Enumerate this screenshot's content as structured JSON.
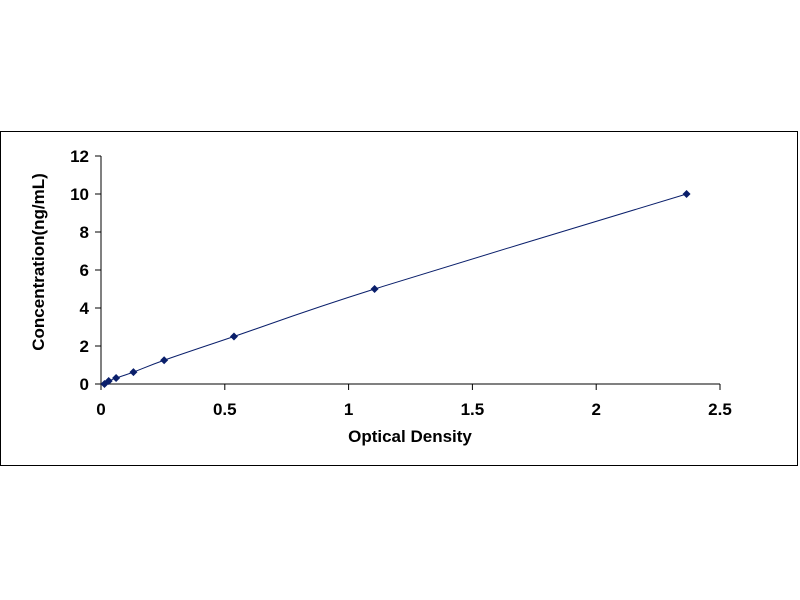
{
  "chart_data": {
    "type": "scatter",
    "title": "",
    "xlabel": "Optical Density",
    "ylabel": "Concentration(ng/mL)",
    "xlim": [
      0,
      2.5
    ],
    "ylim": [
      0,
      12
    ],
    "x_ticks": [
      0,
      0.5,
      1,
      1.5,
      2,
      2.5
    ],
    "x_tick_labels": [
      "0",
      "0.5",
      "1",
      "1.5",
      "2",
      "2.5"
    ],
    "y_ticks": [
      0,
      2,
      4,
      6,
      8,
      10,
      12
    ],
    "y_tick_labels": [
      "0",
      "2",
      "4",
      "6",
      "8",
      "10",
      "12"
    ],
    "grid": false,
    "legend": "none",
    "series": [
      {
        "marker": "diamond",
        "line": "smooth",
        "x": [
          0.014,
          0.031,
          0.061,
          0.131,
          0.255,
          0.537,
          1.105,
          2.365
        ],
        "y": [
          0,
          0.156,
          0.313,
          0.625,
          1.25,
          2.5,
          5,
          10
        ]
      }
    ],
    "colors": {
      "marker": "#0a1f6b",
      "line": "#0a1f6b",
      "axis": "#000000"
    }
  }
}
